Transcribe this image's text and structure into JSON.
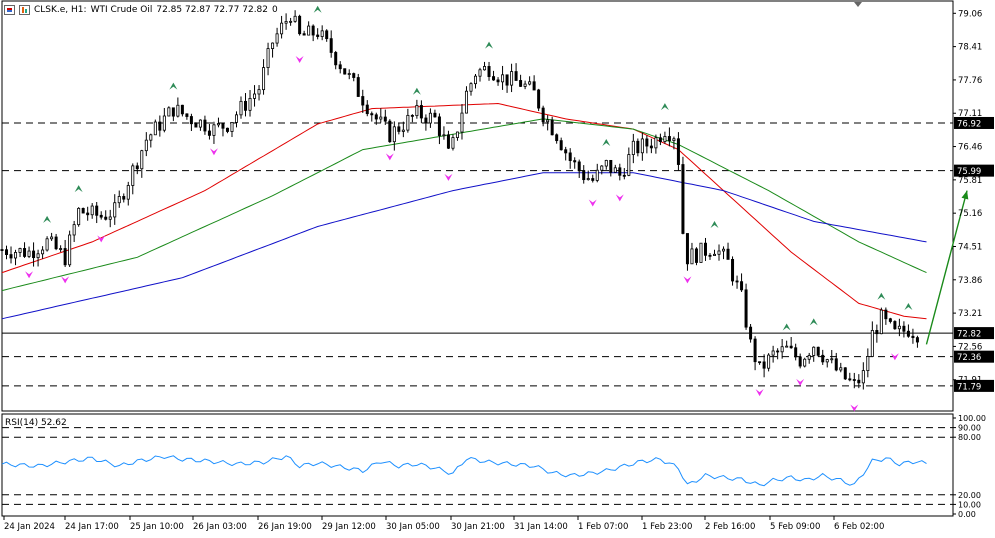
{
  "header": {
    "symbol": "CLSK.e, H1:",
    "description": "WTI Crude Oil",
    "ohlc": "72.85 72.87 72.77 72.82",
    "extra": "0"
  },
  "rsi_label": "RSI(14) 52.62",
  "colors": {
    "bull": "#000000",
    "bear": "#000000",
    "ma_fast": "#e00000",
    "ma_mid": "#1a8a1a",
    "ma_slow": "#1010c8",
    "rsi": "#1e90ff",
    "arrow": "#1a8a1a",
    "fractal_up": "#2e8b57",
    "fractal_down": "#ee30ee"
  },
  "icons": [
    "chart-type-icon",
    "chart-window-icon"
  ],
  "chart_data": [
    {
      "type": "candlestick",
      "title": "CLSK.e, H1: WTI Crude Oil",
      "ylim": [
        71.3,
        79.3
      ],
      "price_ticks": [
        "79.06",
        "78.41",
        "77.76",
        "77.11",
        "76.46",
        "75.81",
        "75.16",
        "74.51",
        "73.86",
        "73.21",
        "72.56",
        "71.91"
      ],
      "current_price": "72.82",
      "horizontal_levels": [
        {
          "value": 76.92,
          "label": "76.92"
        },
        {
          "value": 75.99,
          "label": "75.99"
        },
        {
          "value": 72.36,
          "label": "72.36"
        },
        {
          "value": 71.79,
          "label": "71.79"
        }
      ],
      "x_tick_labels": [
        "24 Jan 2024",
        "24 Jan 17:00",
        "25 Jan 10:00",
        "26 Jan 03:00",
        "26 Jan 19:00",
        "29 Jan 12:00",
        "30 Jan 05:00",
        "30 Jan 21:00",
        "31 Jan 14:00",
        "1 Feb 07:00",
        "1 Feb 23:00",
        "2 Feb 16:00",
        "5 Feb 09:00",
        "6 Feb 02:00"
      ],
      "close_path": [
        [
          0,
          74.45
        ],
        [
          6,
          74.4
        ],
        [
          10,
          74.6
        ],
        [
          14,
          74.3
        ],
        [
          17,
          75.2
        ],
        [
          22,
          75.1
        ],
        [
          25,
          75.2
        ],
        [
          27,
          75.6
        ],
        [
          32,
          76.6
        ],
        [
          35,
          76.9
        ],
        [
          38,
          77.2
        ],
        [
          42,
          77.0
        ],
        [
          45,
          76.9
        ],
        [
          47,
          76.8
        ],
        [
          50,
          76.9
        ],
        [
          54,
          77.3
        ],
        [
          57,
          77.6
        ],
        [
          60,
          78.5
        ],
        [
          64,
          79.06
        ],
        [
          66,
          78.6
        ],
        [
          70,
          78.7
        ],
        [
          74,
          78.2
        ],
        [
          77,
          77.8
        ],
        [
          80,
          77.4
        ],
        [
          83,
          77.0
        ],
        [
          86,
          76.7
        ],
        [
          89,
          76.9
        ],
        [
          92,
          77.1
        ],
        [
          96,
          77.0
        ],
        [
          98,
          76.6
        ],
        [
          99,
          76.3
        ],
        [
          100,
          76.5
        ],
        [
          103,
          77.5
        ],
        [
          105,
          77.9
        ],
        [
          108,
          78.0
        ],
        [
          111,
          77.8
        ],
        [
          115,
          77.7
        ],
        [
          118,
          77.5
        ],
        [
          120,
          77.1
        ],
        [
          123,
          76.7
        ],
        [
          126,
          76.2
        ],
        [
          129,
          75.9
        ],
        [
          131,
          75.8
        ],
        [
          134,
          76.1
        ],
        [
          137,
          75.9
        ],
        [
          140,
          76.4
        ],
        [
          143,
          76.5
        ],
        [
          145,
          76.6
        ],
        [
          147,
          76.8
        ],
        [
          149,
          76.7
        ],
        [
          150,
          76.2
        ],
        [
          151,
          74.8
        ],
        [
          152,
          74.3
        ],
        [
          155,
          74.4
        ],
        [
          158,
          74.5
        ],
        [
          161,
          74.2
        ],
        [
          164,
          73.5
        ],
        [
          166,
          72.6
        ],
        [
          168,
          72.1
        ],
        [
          171,
          72.4
        ],
        [
          174,
          72.5
        ],
        [
          177,
          72.3
        ],
        [
          180,
          72.6
        ],
        [
          183,
          72.3
        ],
        [
          186,
          72.0
        ],
        [
          189,
          71.8
        ],
        [
          191,
          72.0
        ],
        [
          193,
          72.8
        ],
        [
          195,
          73.1
        ],
        [
          198,
          72.8
        ],
        [
          201,
          72.9
        ],
        [
          203,
          72.82
        ]
      ],
      "series": [
        {
          "name": "MA fast",
          "values": [
            [
              0,
              74.0
            ],
            [
              20,
              74.6
            ],
            [
              45,
              75.6
            ],
            [
              70,
              76.9
            ],
            [
              82,
              77.2
            ],
            [
              110,
              77.3
            ],
            [
              125,
              77.0
            ],
            [
              140,
              76.8
            ],
            [
              150,
              76.4
            ],
            [
              160,
              75.6
            ],
            [
              175,
              74.4
            ],
            [
              190,
              73.4
            ],
            [
              200,
              73.15
            ],
            [
              205,
              73.1
            ]
          ]
        },
        {
          "name": "MA mid",
          "values": [
            [
              0,
              73.65
            ],
            [
              30,
              74.3
            ],
            [
              60,
              75.5
            ],
            [
              80,
              76.4
            ],
            [
              100,
              76.7
            ],
            [
              120,
              77.0
            ],
            [
              140,
              76.8
            ],
            [
              150,
              76.5
            ],
            [
              170,
              75.6
            ],
            [
              190,
              74.6
            ],
            [
              205,
              74.0
            ]
          ]
        },
        {
          "name": "MA slow",
          "values": [
            [
              0,
              73.1
            ],
            [
              40,
              73.9
            ],
            [
              70,
              74.9
            ],
            [
              100,
              75.6
            ],
            [
              120,
              75.95
            ],
            [
              140,
              75.95
            ],
            [
              160,
              75.6
            ],
            [
              180,
              75.0
            ],
            [
              205,
              74.6
            ]
          ]
        }
      ],
      "forecast_arrow": {
        "from": [
          205,
          72.6
        ],
        "to": [
          214,
          75.6
        ]
      }
    },
    {
      "type": "line",
      "title": "RSI(14) 52.62",
      "ylim": [
        0,
        100
      ],
      "y_ticks": [
        "100.00",
        "90.00",
        "80.00",
        "20.00",
        "10.00",
        "0.00"
      ],
      "levels": [
        90,
        80,
        20,
        10
      ],
      "values": [
        [
          0,
          52
        ],
        [
          8,
          50
        ],
        [
          15,
          55
        ],
        [
          20,
          58
        ],
        [
          26,
          50
        ],
        [
          30,
          55
        ],
        [
          36,
          60
        ],
        [
          40,
          57
        ],
        [
          46,
          55
        ],
        [
          52,
          52
        ],
        [
          58,
          54
        ],
        [
          63,
          60
        ],
        [
          66,
          50
        ],
        [
          70,
          53
        ],
        [
          74,
          50
        ],
        [
          80,
          45
        ],
        [
          84,
          55
        ],
        [
          88,
          50
        ],
        [
          92,
          52
        ],
        [
          96,
          48
        ],
        [
          100,
          42
        ],
        [
          103,
          58
        ],
        [
          108,
          54
        ],
        [
          113,
          52
        ],
        [
          118,
          50
        ],
        [
          122,
          43
        ],
        [
          126,
          40
        ],
        [
          130,
          42
        ],
        [
          134,
          45
        ],
        [
          138,
          50
        ],
        [
          142,
          55
        ],
        [
          146,
          57
        ],
        [
          150,
          48
        ],
        [
          152,
          30
        ],
        [
          156,
          40
        ],
        [
          160,
          38
        ],
        [
          164,
          36
        ],
        [
          168,
          30
        ],
        [
          171,
          35
        ],
        [
          175,
          38
        ],
        [
          178,
          35
        ],
        [
          182,
          40
        ],
        [
          186,
          35
        ],
        [
          189,
          30
        ],
        [
          193,
          55
        ],
        [
          196,
          58
        ],
        [
          199,
          52
        ],
        [
          203,
          55
        ],
        [
          205,
          52
        ]
      ]
    }
  ]
}
